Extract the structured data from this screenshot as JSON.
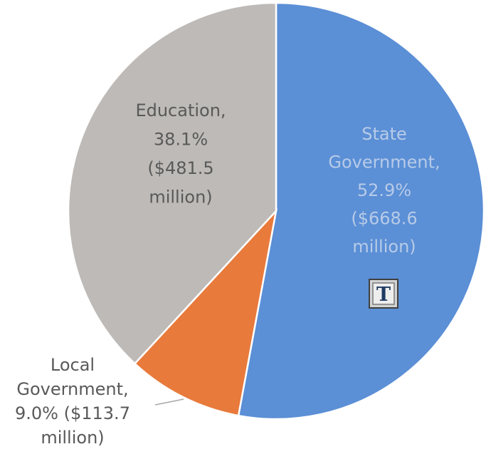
{
  "chart_data": {
    "type": "pie",
    "start_angle_deg": 0,
    "direction": "clockwise",
    "slices": [
      {
        "name": "State Government",
        "percent": 52.9,
        "value_million": 668.6,
        "color": "#5b8fd6",
        "label_lines": [
          "State",
          "Government,",
          "52.9%",
          "($668.6",
          "million)"
        ]
      },
      {
        "name": "Local Government",
        "percent": 9.0,
        "value_million": 113.7,
        "color": "#e87a3c",
        "label_lines": [
          "Local",
          "Government,",
          "9.0% ($113.7",
          "million)"
        ]
      },
      {
        "name": "Education",
        "percent": 38.1,
        "value_million": 481.5,
        "color": "#bdbab7",
        "label_lines": [
          "Education,",
          "38.1%",
          "($481.5",
          "million)"
        ]
      }
    ],
    "title": "",
    "legend": "none"
  },
  "badge": {
    "text": "T"
  }
}
